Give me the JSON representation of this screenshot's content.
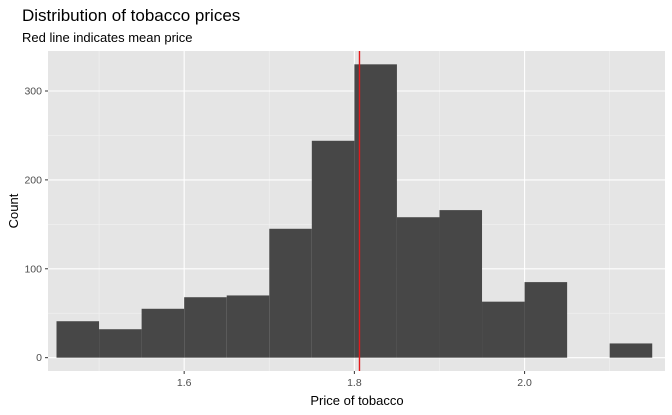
{
  "chart_data": {
    "type": "bar",
    "title": "Distribution of tobacco prices",
    "subtitle": "Red line indicates mean price",
    "xlabel": "Price of tobacco",
    "ylabel": "Count",
    "xlim": [
      1.44,
      2.165
    ],
    "ylim": [
      -15,
      345
    ],
    "x_ticks": [
      1.6,
      1.8,
      2.0
    ],
    "x_tick_labels": [
      "1.6",
      "1.8",
      "2.0"
    ],
    "x_minor_ticks": [
      1.5,
      1.7,
      1.9,
      2.1
    ],
    "y_ticks": [
      0,
      100,
      200,
      300
    ],
    "y_tick_labels": [
      "0",
      "100",
      "200",
      "300"
    ],
    "bins": [
      {
        "x0": 1.45,
        "x1": 1.5,
        "count": 41
      },
      {
        "x0": 1.5,
        "x1": 1.55,
        "count": 32
      },
      {
        "x0": 1.55,
        "x1": 1.6,
        "count": 55
      },
      {
        "x0": 1.6,
        "x1": 1.65,
        "count": 68
      },
      {
        "x0": 1.65,
        "x1": 1.7,
        "count": 70
      },
      {
        "x0": 1.7,
        "x1": 1.75,
        "count": 145
      },
      {
        "x0": 1.75,
        "x1": 1.8,
        "count": 244
      },
      {
        "x0": 1.8,
        "x1": 1.85,
        "count": 330
      },
      {
        "x0": 1.85,
        "x1": 1.9,
        "count": 158
      },
      {
        "x0": 1.9,
        "x1": 1.95,
        "count": 166
      },
      {
        "x0": 1.95,
        "x1": 2.0,
        "count": 63
      },
      {
        "x0": 2.0,
        "x1": 2.05,
        "count": 85
      },
      {
        "x0": 2.05,
        "x1": 2.1,
        "count": 0
      },
      {
        "x0": 2.1,
        "x1": 2.15,
        "count": 16
      }
    ],
    "mean_line": 1.806,
    "grid": true,
    "colors": {
      "panel": "#e5e5e5",
      "grid_major": "#ffffff",
      "grid_minor": "#f2f2f2",
      "bar": "#474747",
      "mean_line": "#e31a1c",
      "tick": "#333333"
    }
  }
}
